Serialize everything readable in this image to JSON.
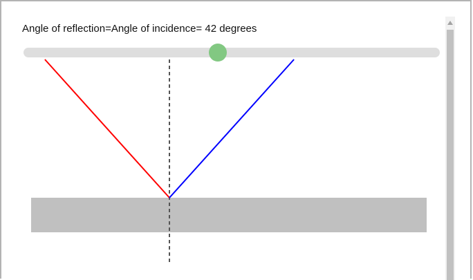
{
  "caption": {
    "text": "Angle of reflection=Angle of incidence= 42 degrees"
  },
  "slider": {
    "value": 42,
    "min": 0,
    "max": 90,
    "thumb_color": "#82c882",
    "track_color": "#dedede"
  },
  "diagram": {
    "angle_deg": 42,
    "incident_ray_color": "#ff0000",
    "reflected_ray_color": "#0000ff",
    "mirror_color": "#c0c0c0",
    "normal_line_color": "#555555",
    "normal_line_style": "dashed"
  },
  "scrollbar": {
    "up_arrow_icon": "triangle-up-icon"
  }
}
